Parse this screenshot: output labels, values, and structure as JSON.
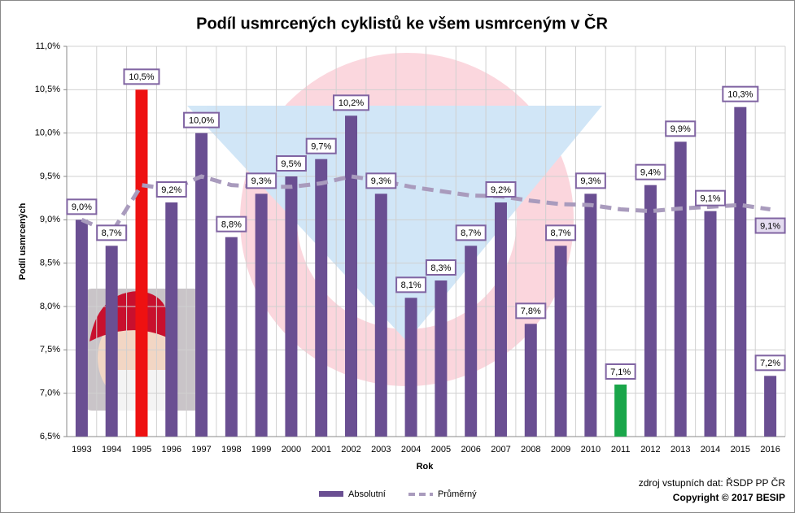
{
  "chart_data": {
    "type": "bar",
    "title": "Podíl usmrcených cyklistů ke všem usmrceným v ČR",
    "ylabel": "Podíl usmrcených",
    "xlabel": "Rok",
    "source": "zdroj vstupních dat: ŘSDP PP ČR",
    "copyright": "Copyright © 2017  BESIP",
    "categories": [
      "1993",
      "1994",
      "1995",
      "1996",
      "1997",
      "1998",
      "1999",
      "2000",
      "2001",
      "2002",
      "2003",
      "2004",
      "2005",
      "2006",
      "2007",
      "2008",
      "2009",
      "2010",
      "2011",
      "2012",
      "2013",
      "2014",
      "2015",
      "2016"
    ],
    "series": [
      {
        "name": "Absolutní",
        "color": "#6a4f92",
        "colors": [
          "#6a4f92",
          "#6a4f92",
          "#ee1111",
          "#6a4f92",
          "#6a4f92",
          "#6a4f92",
          "#6a4f92",
          "#6a4f92",
          "#6a4f92",
          "#6a4f92",
          "#6a4f92",
          "#6a4f92",
          "#6a4f92",
          "#6a4f92",
          "#6a4f92",
          "#6a4f92",
          "#6a4f92",
          "#6a4f92",
          "#1aa64a",
          "#6a4f92",
          "#6a4f92",
          "#6a4f92",
          "#6a4f92",
          "#6a4f92"
        ],
        "values": [
          9.0,
          8.7,
          10.5,
          9.2,
          10.0,
          8.8,
          9.3,
          9.5,
          9.7,
          10.2,
          9.3,
          8.1,
          8.3,
          8.7,
          9.2,
          7.8,
          8.7,
          9.3,
          7.1,
          9.4,
          9.9,
          9.1,
          10.3,
          7.2
        ],
        "value_labels": [
          "9,0%",
          "8,7%",
          "10,5%",
          "9,2%",
          "10,0%",
          "8,8%",
          "9,3%",
          "9,5%",
          "9,7%",
          "10,2%",
          "9,3%",
          "8,1%",
          "8,3%",
          "8,7%",
          "9,2%",
          "7,8%",
          "8,7%",
          "9,3%",
          "7,1%",
          "9,4%",
          "9,9%",
          "9,1%",
          "10,3%",
          "7,2%"
        ]
      },
      {
        "name": "Průměrný",
        "color": "#a99bbd",
        "dashed": true,
        "values": [
          9.0,
          8.85,
          9.4,
          9.35,
          9.5,
          9.4,
          9.38,
          9.38,
          9.42,
          9.5,
          9.45,
          9.38,
          9.33,
          9.28,
          9.27,
          9.22,
          9.18,
          9.17,
          9.12,
          9.1,
          9.13,
          9.15,
          9.17,
          9.12
        ],
        "value_labels": [
          null,
          null,
          null,
          null,
          null,
          null,
          null,
          null,
          null,
          null,
          null,
          null,
          null,
          null,
          null,
          null,
          null,
          null,
          null,
          null,
          null,
          null,
          null,
          "9,1%"
        ]
      }
    ],
    "ylim": [
      6.5,
      11.0
    ],
    "yticks": [
      {
        "value": 6.5,
        "label": "6,5%"
      },
      {
        "value": 7.0,
        "label": "7,0%"
      },
      {
        "value": 7.5,
        "label": "7,5%"
      },
      {
        "value": 8.0,
        "label": "8,0%"
      },
      {
        "value": 8.5,
        "label": "8,5%"
      },
      {
        "value": 9.0,
        "label": "9,0%"
      },
      {
        "value": 9.5,
        "label": "9,5%"
      },
      {
        "value": 10.0,
        "label": "10,0%"
      },
      {
        "value": 10.5,
        "label": "10,5%"
      },
      {
        "value": 11.0,
        "label": "11,0%"
      }
    ],
    "grid": true,
    "legend": "bottom"
  }
}
